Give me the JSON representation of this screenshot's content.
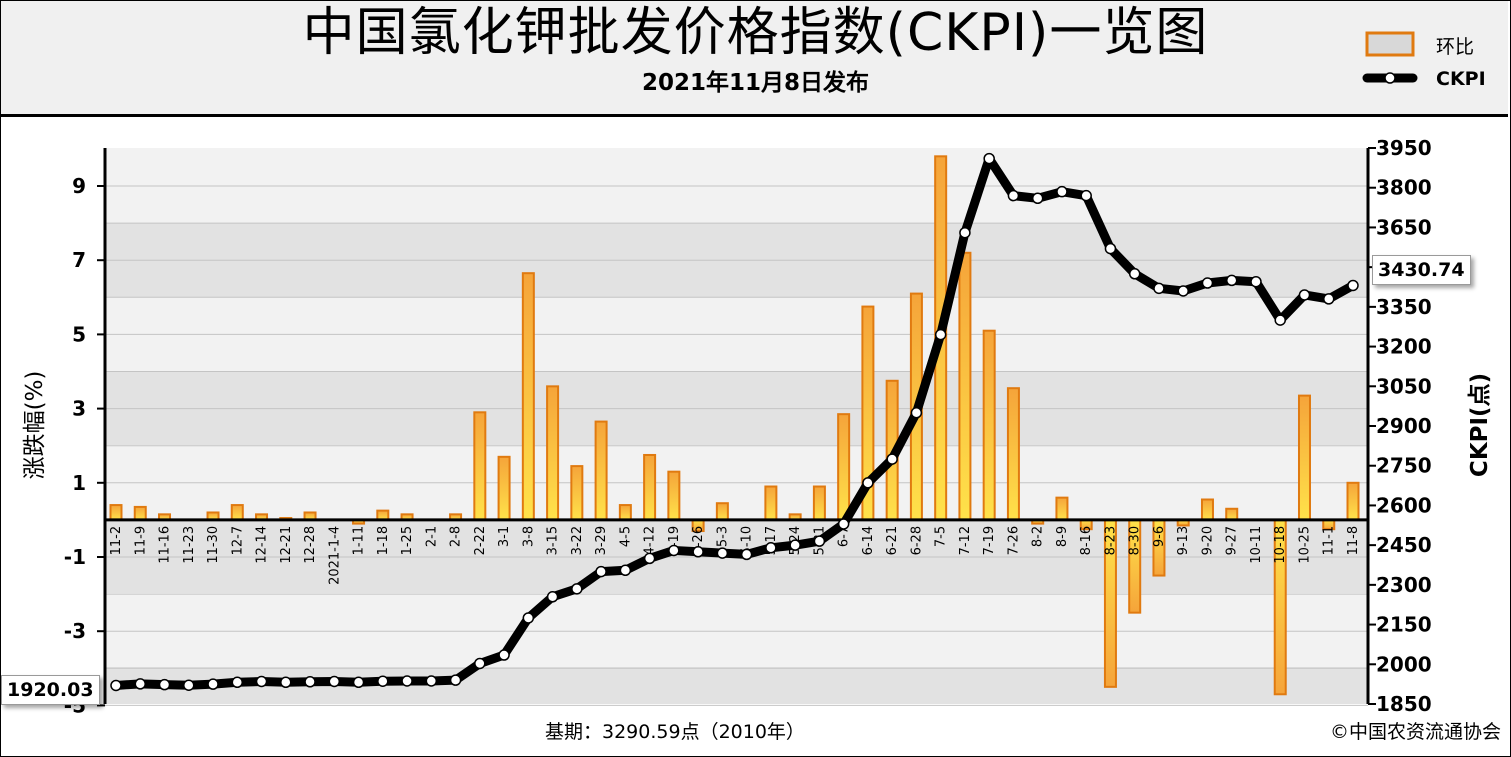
{
  "header": {
    "title": "中国氯化钾批发价格指数(CKPI)一览图",
    "subtitle": "2021年11月8日发布"
  },
  "legend": {
    "bar_label": "环比",
    "line_label": "CKPI"
  },
  "footer": {
    "base_period": "基期：3290.59点（2010年）",
    "copyright": "©中国农资流通协会"
  },
  "labels": {
    "start_value": "1920.03",
    "end_value": "3430.74"
  },
  "colors": {
    "bar_fill_top": "#f5a43a",
    "bar_fill_bottom": "#ffe24a",
    "bar_border": "#e07a10",
    "line": "#000000",
    "marker_fill": "#ffffff",
    "plot_bg_light": "#f2f2f2",
    "plot_bg_dark": "#e2e2e2"
  },
  "chart_data": {
    "type": "bar+line",
    "categories": [
      "11-2",
      "11-9",
      "11-16",
      "11-23",
      "11-30",
      "12-7",
      "12-14",
      "12-21",
      "12-28",
      "2021-1-4",
      "1-11",
      "1-18",
      "1-25",
      "2-1",
      "2-8",
      "2-22",
      "3-1",
      "3-8",
      "3-15",
      "3-22",
      "3-29",
      "4-5",
      "4-12",
      "4-19",
      "4-26",
      "5-3",
      "5-10",
      "5-17",
      "5-24",
      "5-31",
      "6-7",
      "6-14",
      "6-21",
      "6-28",
      "7-5",
      "7-12",
      "7-19",
      "7-26",
      "8-2",
      "8-9",
      "8-16",
      "8-23",
      "8-30",
      "9-6",
      "9-13",
      "9-20",
      "9-27",
      "10-11",
      "10-18",
      "10-25",
      "11-1",
      "11-8"
    ],
    "series": [
      {
        "name": "环比",
        "type": "bar",
        "axis": "left",
        "values": [
          0.4,
          0.35,
          0.15,
          0.0,
          0.2,
          0.4,
          0.15,
          0.05,
          0.2,
          0.0,
          -0.1,
          0.25,
          0.15,
          0.0,
          0.15,
          2.9,
          1.7,
          6.65,
          3.6,
          1.45,
          2.65,
          0.4,
          1.75,
          1.3,
          -0.3,
          0.45,
          0.0,
          0.9,
          0.15,
          0.9,
          2.85,
          5.75,
          3.75,
          6.1,
          9.8,
          7.2,
          5.1,
          3.55,
          -0.1,
          0.6,
          -0.25,
          -4.5,
          -2.5,
          -1.5,
          -0.15,
          0.55,
          0.3,
          0.0,
          -4.7,
          3.35,
          -0.25,
          1.0
        ]
      },
      {
        "name": "CKPI",
        "type": "line",
        "axis": "right",
        "values": [
          1920.03,
          1926,
          1923,
          1921,
          1925,
          1932,
          1935,
          1932,
          1934,
          1935,
          1932,
          1936,
          1937,
          1937,
          1940,
          2003,
          2035,
          2175,
          2255,
          2285,
          2350,
          2355,
          2400,
          2430,
          2425,
          2420,
          2415,
          2440,
          2450,
          2465,
          2530,
          2685,
          2775,
          2950,
          3245,
          3630,
          3910,
          3770,
          3760,
          3785,
          3770,
          3570,
          3475,
          3420,
          3410,
          3440,
          3450,
          3445,
          3300,
          3395,
          3380,
          3430.74
        ]
      }
    ],
    "y_left": {
      "label": "涨跌幅(%)",
      "ticks": [
        9,
        7,
        5,
        3,
        1,
        -1,
        -3,
        -5
      ],
      "range": [
        -5,
        10
      ]
    },
    "y_right": {
      "label": "CKPI(点)",
      "ticks": [
        3950,
        3800,
        3650,
        3500,
        3350,
        3200,
        3050,
        2900,
        2750,
        2600,
        2450,
        2300,
        2150,
        2000,
        1850
      ],
      "range": [
        1850,
        3950
      ]
    },
    "grid": true,
    "legend_position": "top-right"
  }
}
